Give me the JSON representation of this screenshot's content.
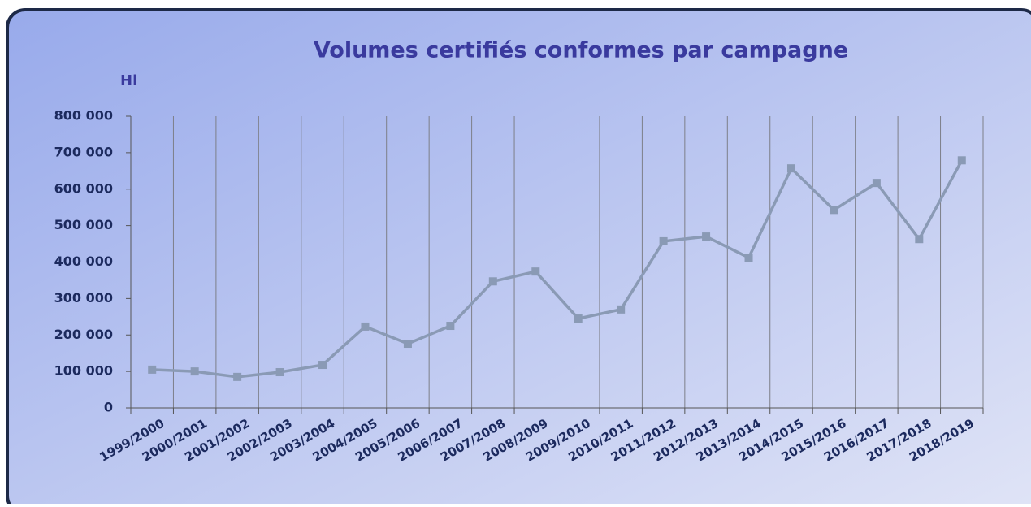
{
  "chart_data": {
    "type": "line",
    "title": "Volumes certifiés conformes par campagne",
    "y_axis_label": "Hl",
    "categories": [
      "1999/2000",
      "2000/2001",
      "2001/2002",
      "2002/2003",
      "2003/2004",
      "2004/2005",
      "2005/2006",
      "2006/2007",
      "2007/2008",
      "2008/2009",
      "2009/2010",
      "2010/2011",
      "2011/2012",
      "2012/2013",
      "2013/2014",
      "2014/2015",
      "2015/2016",
      "2016/2017",
      "2017/2018",
      "2018/2019"
    ],
    "series": [
      {
        "name": "Volumes",
        "color": "#8a9ab5",
        "values": [
          105000,
          100000,
          85000,
          98000,
          118000,
          223000,
          176000,
          225000,
          347000,
          374000,
          245000,
          270000,
          457000,
          470000,
          412000,
          657000,
          543000,
          617000,
          463000,
          679000
        ]
      }
    ],
    "ylim": [
      0,
      800000
    ],
    "yticks": [
      0,
      {
        "value": 100000,
        "label": "100 000"
      },
      {
        "value": 200000,
        "label": "200 000"
      },
      {
        "value": 300000,
        "label": "300 000"
      },
      {
        "value": 400000,
        "label": "400 000"
      },
      {
        "value": 500000,
        "label": "500 000"
      },
      {
        "value": 600000,
        "label": "600 000"
      },
      {
        "value": 700000,
        "label": "700 000"
      },
      {
        "value": 800000,
        "label": "800 000"
      }
    ],
    "grid": true
  }
}
